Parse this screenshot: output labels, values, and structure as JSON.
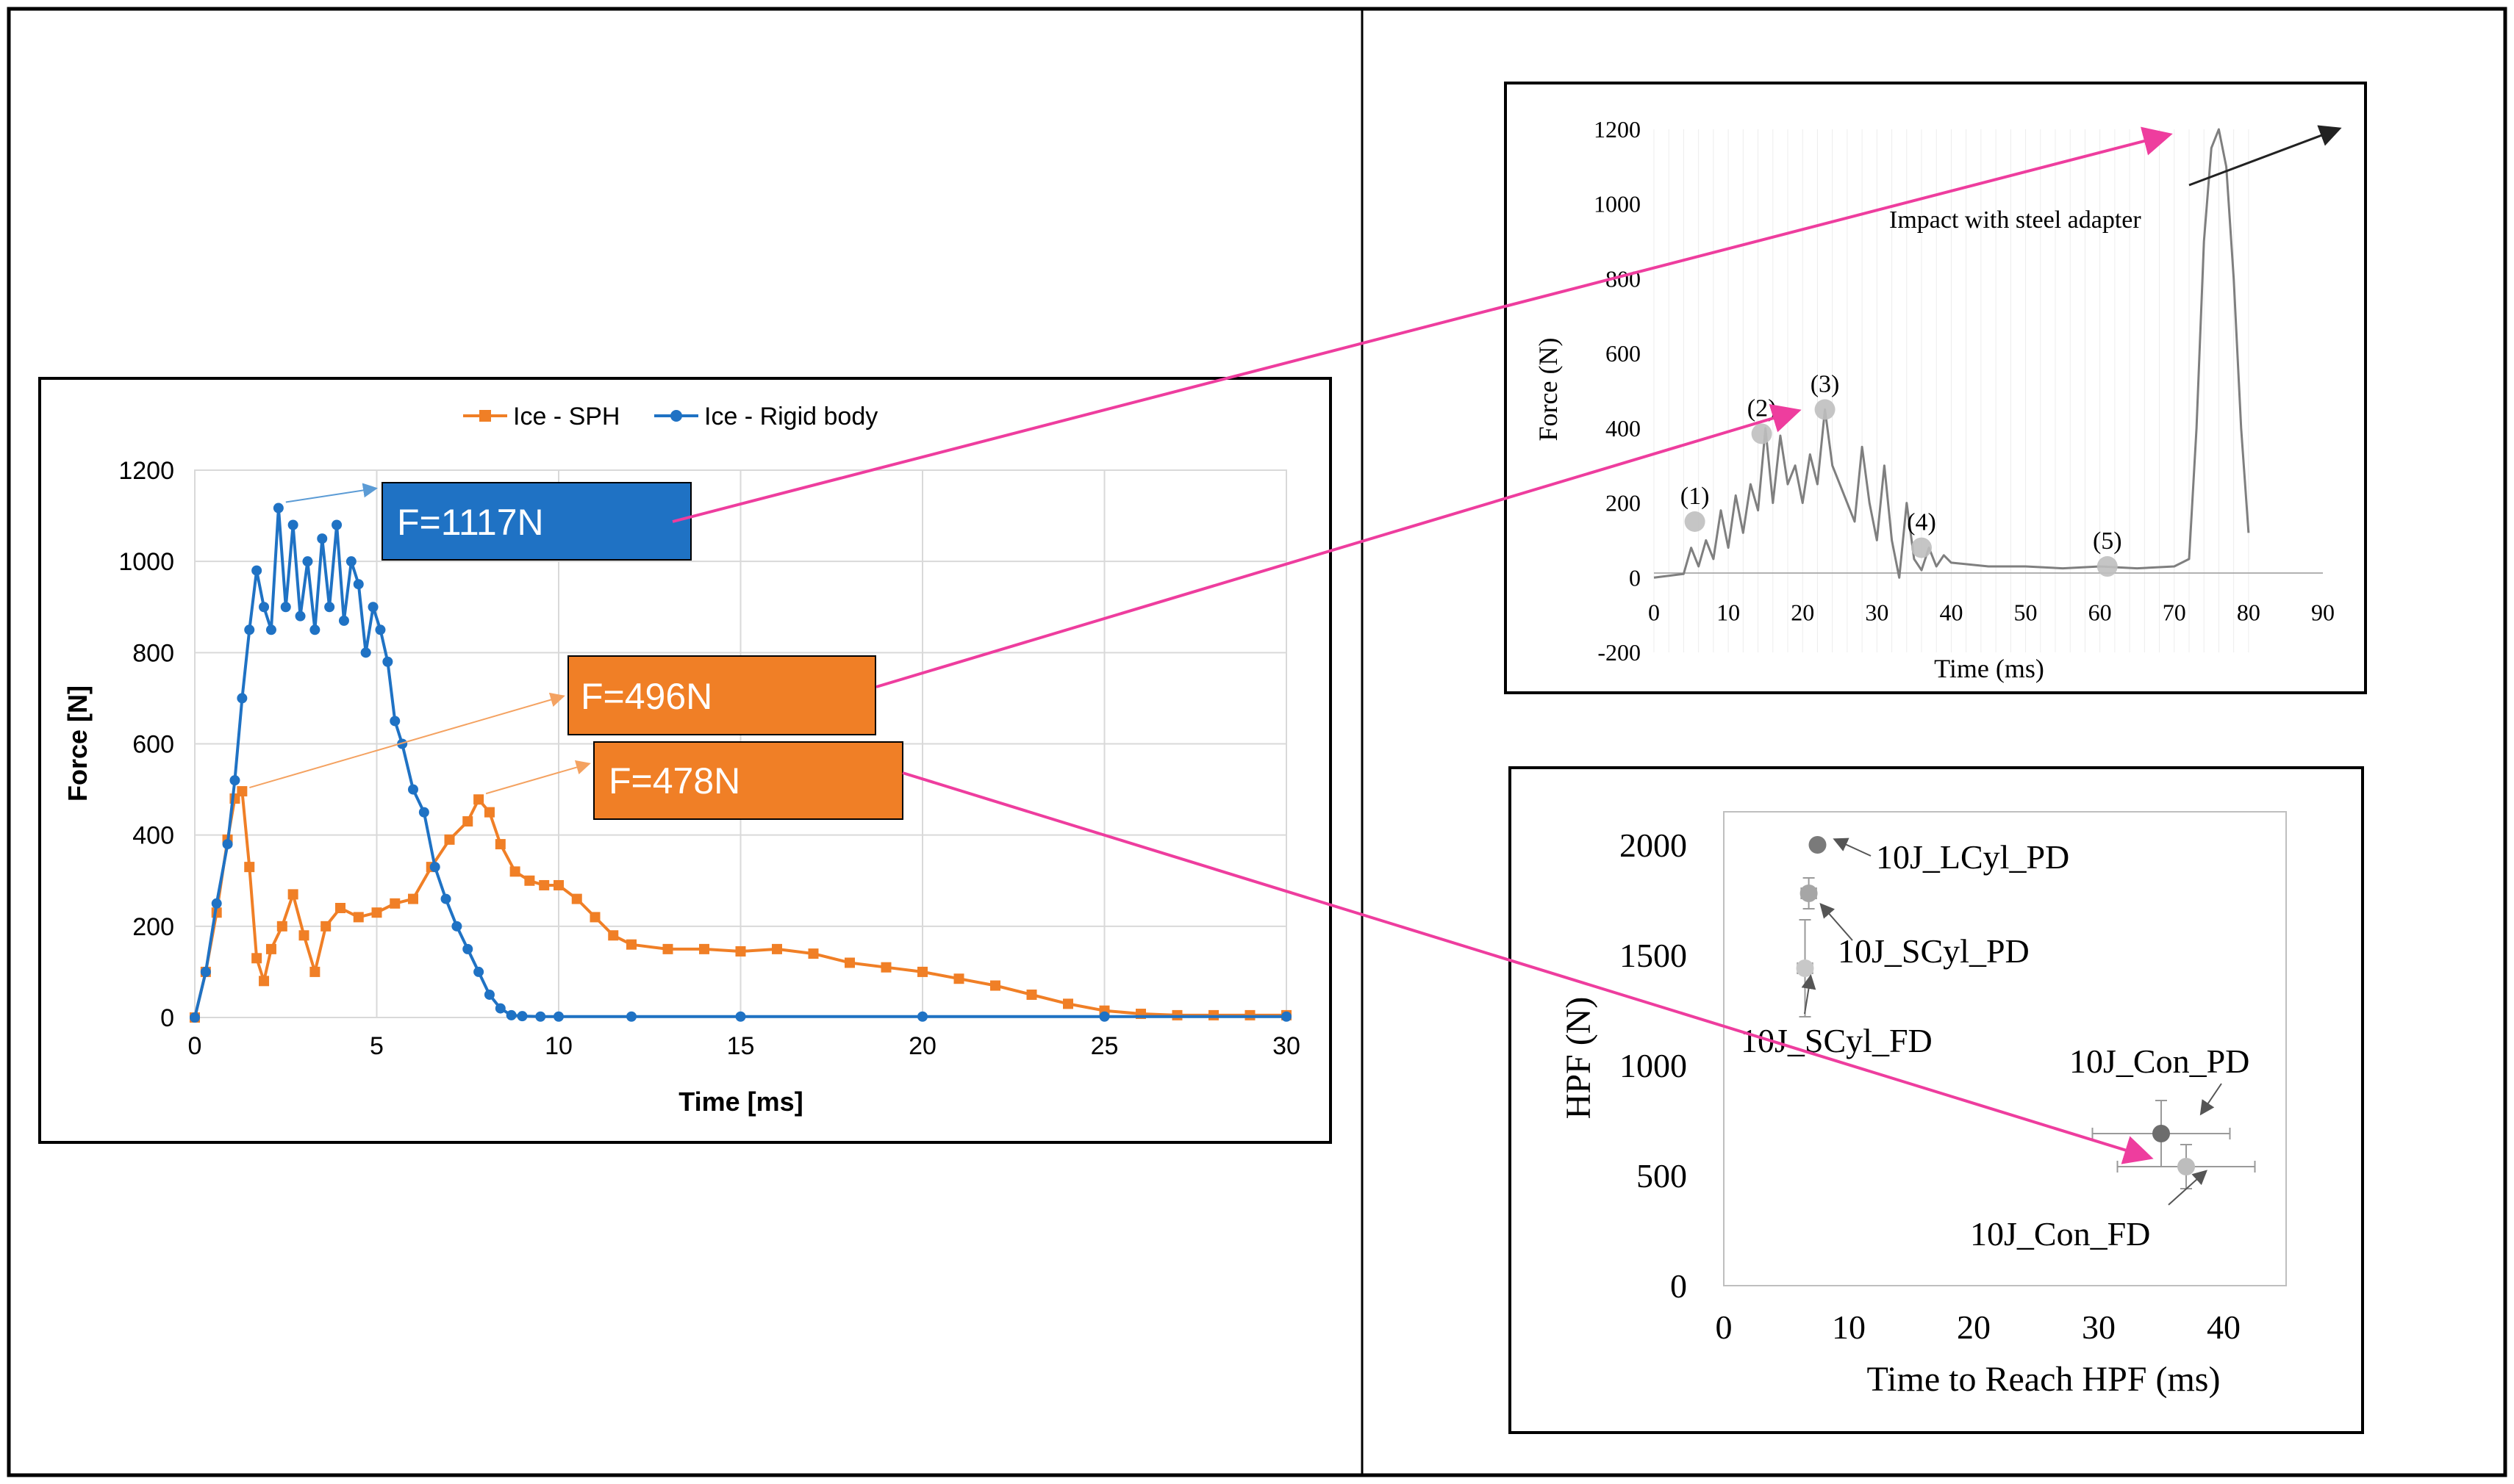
{
  "colors": {
    "sph": "#f07f26",
    "rigid": "#1f72c4",
    "experiment": "#7f7f7f",
    "arrow": "#ee3d9e",
    "frame": "#000000",
    "grid": "#d9d9d9"
  },
  "chart_data": [
    {
      "id": "simulation",
      "type": "line",
      "title": "",
      "xlabel": "Time [ms]",
      "ylabel": "Force [N]",
      "xlim": [
        0,
        30
      ],
      "ylim": [
        0,
        1200
      ],
      "xticks": [
        0,
        5,
        10,
        15,
        20,
        25,
        30
      ],
      "yticks": [
        0,
        200,
        400,
        600,
        800,
        1000,
        1200
      ],
      "grid": true,
      "legend_position": "top",
      "series": [
        {
          "name": "Ice - SPH",
          "color": "#f07f26",
          "marker": "square",
          "x": [
            0,
            0.3,
            0.6,
            0.9,
            1.1,
            1.3,
            1.5,
            1.7,
            1.9,
            2.1,
            2.4,
            2.7,
            3.0,
            3.3,
            3.6,
            4.0,
            4.5,
            5.0,
            5.5,
            6.0,
            6.5,
            7.0,
            7.5,
            7.8,
            8.1,
            8.4,
            8.8,
            9.2,
            9.6,
            10.0,
            10.5,
            11.0,
            11.5,
            12.0,
            13.0,
            14.0,
            15.0,
            16.0,
            17.0,
            18.0,
            19.0,
            20.0,
            21.0,
            22.0,
            23.0,
            24.0,
            25.0,
            26.0,
            27.0,
            28.0,
            29.0,
            30.0
          ],
          "y": [
            0,
            100,
            230,
            390,
            480,
            496,
            330,
            130,
            80,
            150,
            200,
            270,
            180,
            100,
            200,
            240,
            220,
            230,
            250,
            260,
            330,
            390,
            430,
            478,
            450,
            380,
            320,
            300,
            290,
            290,
            260,
            220,
            180,
            160,
            150,
            150,
            145,
            150,
            140,
            120,
            110,
            100,
            85,
            70,
            50,
            30,
            15,
            8,
            5,
            5,
            5,
            5
          ]
        },
        {
          "name": "Ice - Rigid body",
          "color": "#1f72c4",
          "marker": "circle",
          "x": [
            0,
            0.3,
            0.6,
            0.9,
            1.1,
            1.3,
            1.5,
            1.7,
            1.9,
            2.1,
            2.3,
            2.5,
            2.7,
            2.9,
            3.1,
            3.3,
            3.5,
            3.7,
            3.9,
            4.1,
            4.3,
            4.5,
            4.7,
            4.9,
            5.1,
            5.3,
            5.5,
            5.7,
            6.0,
            6.3,
            6.6,
            6.9,
            7.2,
            7.5,
            7.8,
            8.1,
            8.4,
            8.7,
            9.0,
            9.5,
            10.0,
            12.0,
            15.0,
            20.0,
            25.0,
            30.0
          ],
          "y": [
            0,
            100,
            250,
            380,
            520,
            700,
            850,
            980,
            900,
            850,
            1117,
            900,
            1080,
            880,
            1000,
            850,
            1050,
            900,
            1080,
            870,
            1000,
            950,
            800,
            900,
            850,
            780,
            650,
            600,
            500,
            450,
            330,
            260,
            200,
            150,
            100,
            50,
            20,
            5,
            3,
            2,
            2,
            2,
            2,
            2,
            2,
            2
          ]
        }
      ],
      "annotations": [
        {
          "label": "F=1117N",
          "series": "Ice - Rigid body",
          "x": 2.3,
          "y": 1117
        },
        {
          "label": "F=496N",
          "series": "Ice - SPH",
          "x": 1.3,
          "y": 496
        },
        {
          "label": "F=478N",
          "series": "Ice - SPH",
          "x": 7.8,
          "y": 478
        }
      ]
    },
    {
      "id": "experiment",
      "type": "line",
      "title": "",
      "xlabel": "Time (ms)",
      "ylabel": "Force (N)",
      "xlim": [
        0,
        90
      ],
      "ylim": [
        -200,
        1200
      ],
      "xticks": [
        0,
        10,
        20,
        30,
        40,
        50,
        60,
        70,
        80,
        90
      ],
      "yticks": [
        -200,
        0,
        200,
        400,
        600,
        800,
        1000,
        1200
      ],
      "grid": true,
      "series": [
        {
          "name": "Force",
          "color": "#7f7f7f",
          "x": [
            0,
            4,
            5,
            6,
            7,
            8,
            9,
            10,
            11,
            12,
            13,
            14,
            15,
            16,
            17,
            18,
            19,
            20,
            21,
            22,
            23,
            24,
            25,
            26,
            27,
            28,
            29,
            30,
            31,
            32,
            33,
            34,
            35,
            36,
            37,
            38,
            39,
            40,
            45,
            50,
            55,
            60,
            65,
            70,
            72,
            73,
            74,
            75,
            76,
            77,
            78,
            79,
            80
          ],
          "y": [
            0,
            10,
            80,
            30,
            100,
            50,
            180,
            80,
            220,
            120,
            250,
            180,
            400,
            200,
            380,
            250,
            300,
            200,
            330,
            250,
            450,
            300,
            250,
            200,
            150,
            350,
            200,
            100,
            300,
            100,
            0,
            200,
            50,
            20,
            80,
            30,
            60,
            40,
            30,
            30,
            25,
            30,
            25,
            30,
            50,
            400,
            900,
            1150,
            1200,
            1100,
            800,
            400,
            120
          ]
        }
      ],
      "markers": [
        {
          "label": "(1)",
          "x": 5.5,
          "y": 150
        },
        {
          "label": "(2)",
          "x": 14.5,
          "y": 385
        },
        {
          "label": "(3)",
          "x": 23,
          "y": 450
        },
        {
          "label": "(4)",
          "x": 36,
          "y": 80
        },
        {
          "label": "(5)",
          "x": 61,
          "y": 30
        }
      ],
      "annotation": {
        "label": "Impact with steel adapter",
        "x": 76,
        "y": 1200
      }
    },
    {
      "id": "hpf",
      "type": "scatter",
      "title": "",
      "xlabel": "Time to Reach HPF (ms)",
      "ylabel": "HPF (N)",
      "xlim": [
        0,
        45
      ],
      "ylim": [
        0,
        2150
      ],
      "xticks": [
        0,
        10,
        20,
        30,
        40
      ],
      "yticks": [
        0,
        500,
        1000,
        1500,
        2000
      ],
      "grid": false,
      "points": [
        {
          "label": "10J_LCyl_PD",
          "x": 7.5,
          "y": 2000,
          "xerr": 0,
          "yerr": 0,
          "color": "#7a7a7a"
        },
        {
          "label": "10J_SCyl_PD",
          "x": 6.8,
          "y": 1780,
          "xerr": 0.6,
          "yerr": 70,
          "color": "#a6a6a6"
        },
        {
          "label": "10J_SCyl_FD",
          "x": 6.5,
          "y": 1440,
          "xerr": 0.6,
          "yerr": 220,
          "color": "#c8c8c8"
        },
        {
          "label": "10J_Con_PD",
          "x": 35,
          "y": 690,
          "xerr": 5.5,
          "yerr": 150,
          "color": "#6d6d6d"
        },
        {
          "label": "10J_Con_FD",
          "x": 37,
          "y": 540,
          "xerr": 5.5,
          "yerr": 100,
          "color": "#bdbdbd"
        }
      ]
    }
  ]
}
